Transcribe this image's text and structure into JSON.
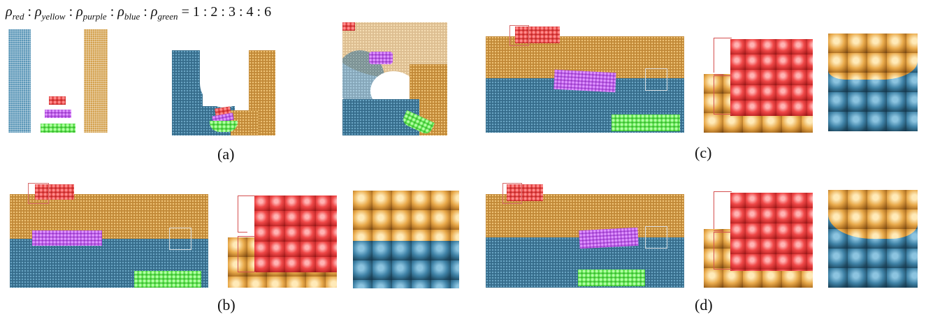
{
  "equation": {
    "rho": "ρ",
    "sub_red": "red",
    "sub_yellow": "yellow",
    "sub_purple": "purple",
    "sub_blue": "blue",
    "sub_green": "green",
    "sep": ":",
    "ratio": "= 1 : 2 : 3 : 4 : 6"
  },
  "captions": {
    "a": "(a)",
    "b": "(b)",
    "c": "(c)",
    "d": "(d)"
  },
  "colors": {
    "red": "#d83a3a",
    "yellow": "#d6a04a",
    "purple": "#a040c8",
    "blue": "#3f7fa3",
    "green": "#3cc43c"
  }
}
